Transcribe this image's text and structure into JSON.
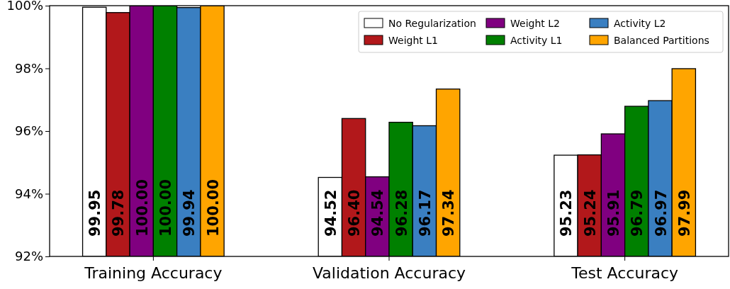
{
  "chart_data": {
    "type": "bar",
    "categories": [
      "Training Accuracy",
      "Validation Accuracy",
      "Test Accuracy"
    ],
    "series": [
      {
        "name": "No Regularization",
        "color": "#ffffff",
        "values": [
          99.95,
          94.52,
          95.23
        ],
        "value_labels": [
          "99.95",
          "94.52",
          "95.23"
        ]
      },
      {
        "name": "Weight L1",
        "color": "#b2181b",
        "values": [
          99.78,
          96.4,
          95.24
        ],
        "value_labels": [
          "99.78",
          "96.40",
          "95.24"
        ]
      },
      {
        "name": "Weight L2",
        "color": "#800080",
        "values": [
          100.0,
          94.54,
          95.91
        ],
        "value_labels": [
          "100.00",
          "94.54",
          "95.91"
        ]
      },
      {
        "name": "Activity L1",
        "color": "#008000",
        "values": [
          100.0,
          96.28,
          96.79
        ],
        "value_labels": [
          "100.00",
          "96.28",
          "96.79"
        ]
      },
      {
        "name": "Activity L2",
        "color": "#3a7fc1",
        "values": [
          99.94,
          96.17,
          96.97
        ],
        "value_labels": [
          "99.94",
          "96.17",
          "96.97"
        ]
      },
      {
        "name": "Balanced Partitions",
        "color": "#ffa500",
        "values": [
          100.0,
          97.34,
          97.99
        ],
        "value_labels": [
          "100.00",
          "97.34",
          "97.99"
        ]
      }
    ],
    "ylim": [
      92,
      100
    ],
    "yticks": [
      {
        "value": 92,
        "label": "92%"
      },
      {
        "value": 94,
        "label": "94%"
      },
      {
        "value": 96,
        "label": "96%"
      },
      {
        "value": 98,
        "label": "98%"
      },
      {
        "value": 100,
        "label": "100%"
      }
    ],
    "grid": false,
    "legend": "top right"
  }
}
